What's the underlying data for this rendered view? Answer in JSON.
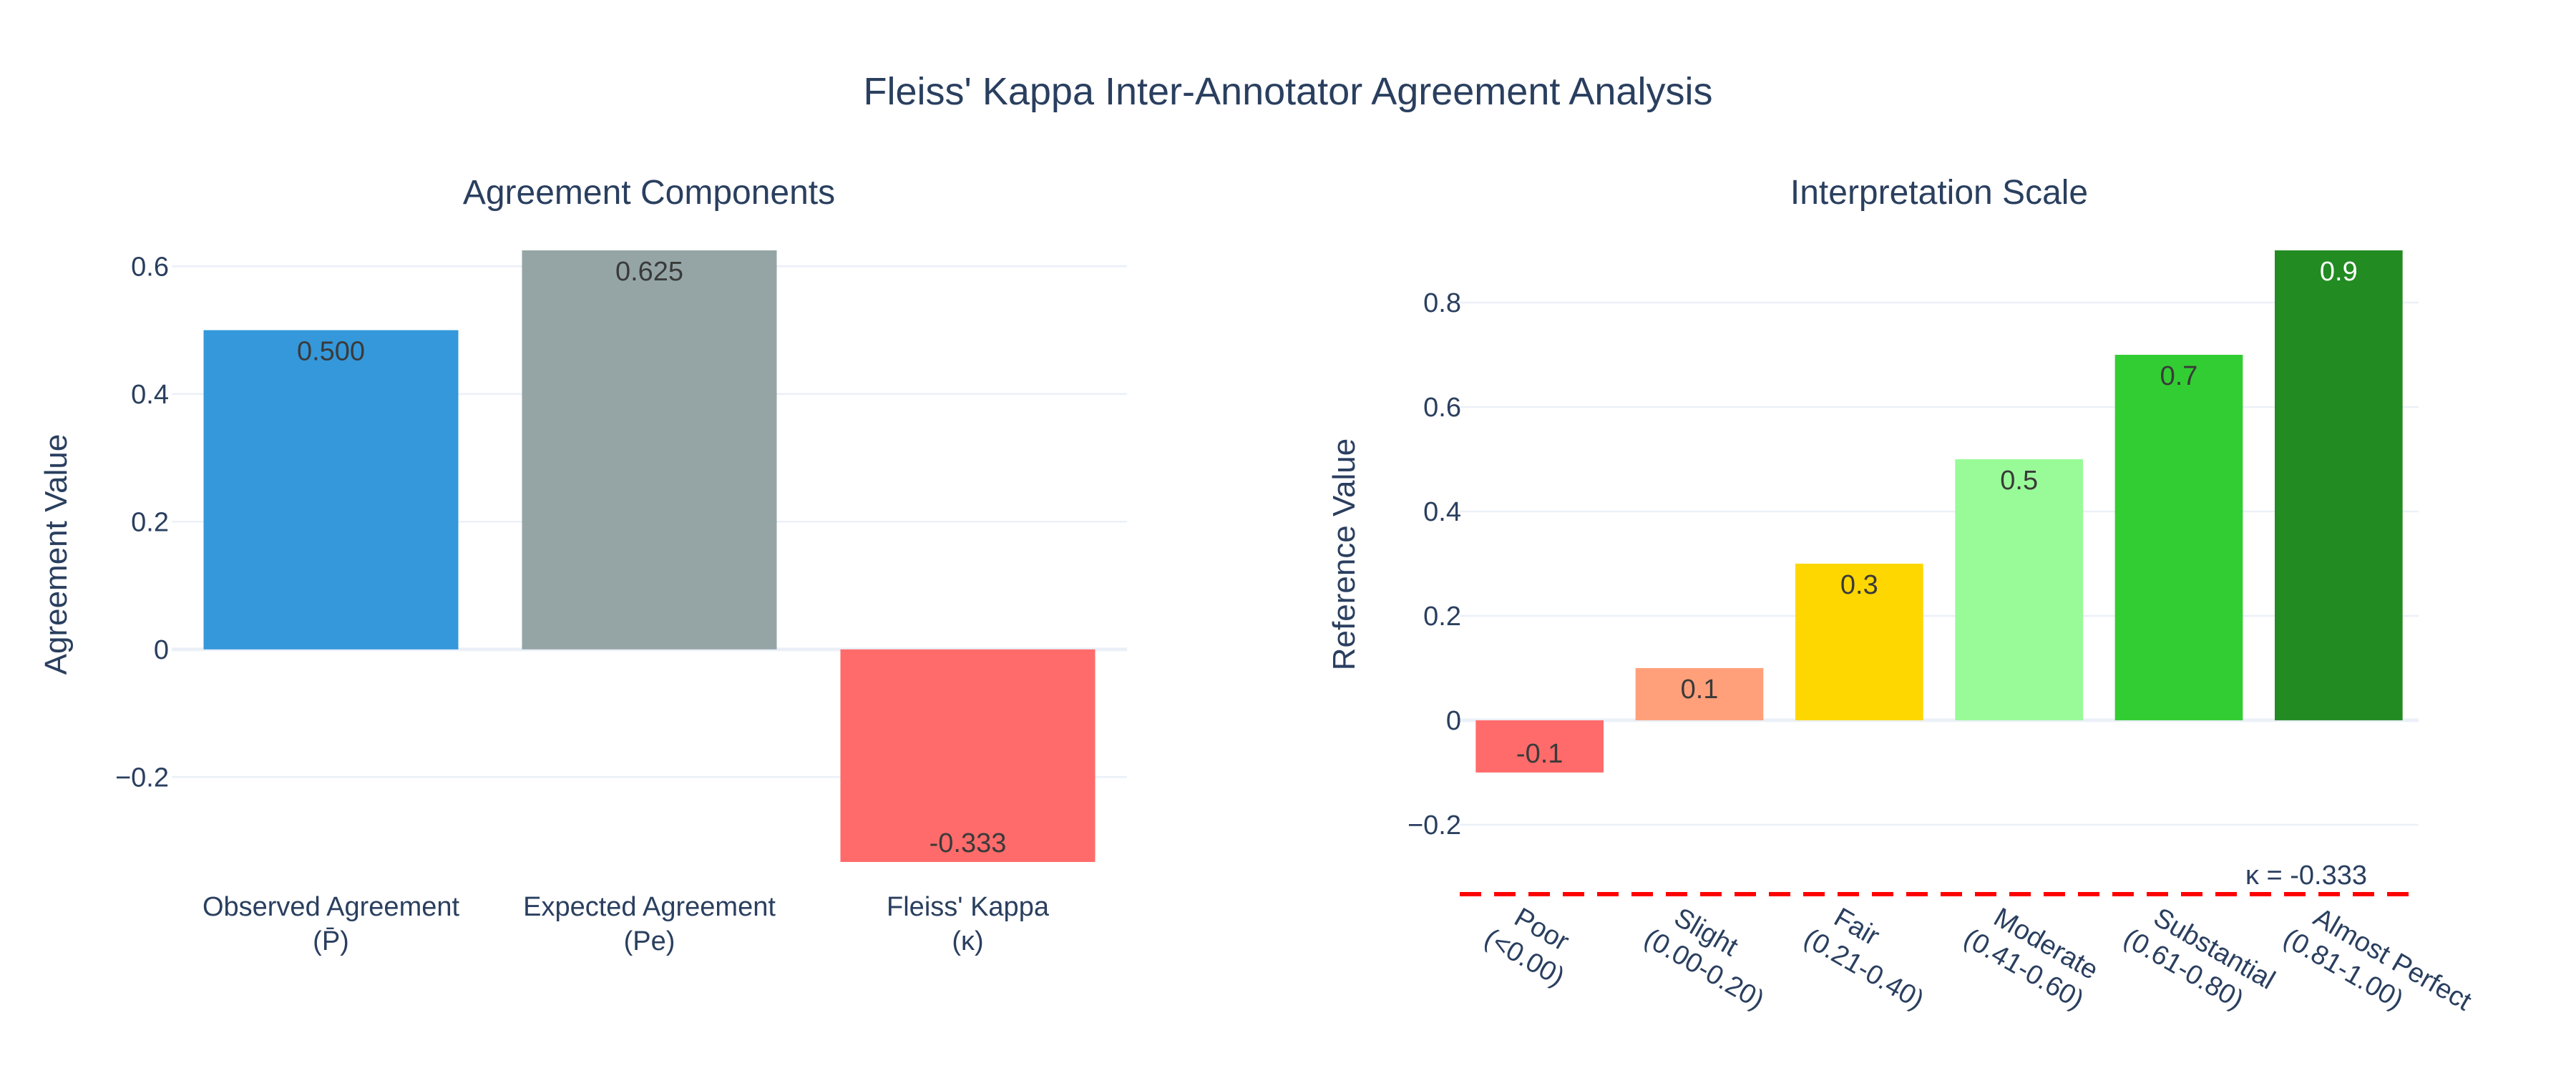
{
  "title": "Fleiss' Kappa Inter-Annotator Agreement Analysis",
  "chart_data": [
    {
      "type": "bar",
      "title": "Agreement Components",
      "xlabel": "",
      "ylabel": "Agreement Value",
      "categories": [
        [
          "Observed Agreement",
          "(P̄)"
        ],
        [
          "Expected Agreement",
          "(Pe)"
        ],
        [
          "Fleiss' Kappa",
          "(κ)"
        ]
      ],
      "values": [
        0.5,
        0.625,
        -0.333
      ],
      "value_labels": [
        "0.500",
        "0.625",
        "-0.333"
      ],
      "colors": [
        "#3498db",
        "#95a5a6",
        "#ff6b6b"
      ],
      "ylim": [
        -0.333,
        0.625
      ],
      "yticks": [
        -0.2,
        0,
        0.2,
        0.4,
        0.6
      ],
      "ytick_labels": [
        "−0.2",
        "0",
        "0.2",
        "0.4",
        "0.6"
      ],
      "grid": true,
      "legend": "none"
    },
    {
      "type": "bar",
      "title": "Interpretation Scale",
      "xlabel": "",
      "ylabel": "Reference Value",
      "categories": [
        [
          "Poor",
          "(<0.00)"
        ],
        [
          "Slight",
          "(0.00-0.20)"
        ],
        [
          "Fair",
          "(0.21-0.40)"
        ],
        [
          "Moderate",
          "(0.41-0.60)"
        ],
        [
          "Substantial",
          "(0.61-0.80)"
        ],
        [
          "Almost Perfect",
          "(0.81-1.00)"
        ]
      ],
      "values": [
        -0.1,
        0.1,
        0.3,
        0.5,
        0.7,
        0.9
      ],
      "value_labels": [
        "-0.1",
        "0.1",
        "0.3",
        "0.5",
        "0.7",
        "0.9"
      ],
      "colors": [
        "#ff6b6b",
        "#ffa07a",
        "#ffd700",
        "#98fb98",
        "#32cd32",
        "#228b22"
      ],
      "label_light": [
        false,
        false,
        false,
        false,
        false,
        true
      ],
      "ylim": [
        -0.333,
        0.9
      ],
      "yticks": [
        -0.2,
        0,
        0.2,
        0.4,
        0.6,
        0.8
      ],
      "ytick_labels": [
        "−0.2",
        "0",
        "0.2",
        "0.4",
        "0.6",
        "0.8"
      ],
      "hline": {
        "y": -0.333,
        "color": "#ff0000",
        "label": "κ = -0.333"
      },
      "grid": true,
      "legend": "none"
    }
  ]
}
